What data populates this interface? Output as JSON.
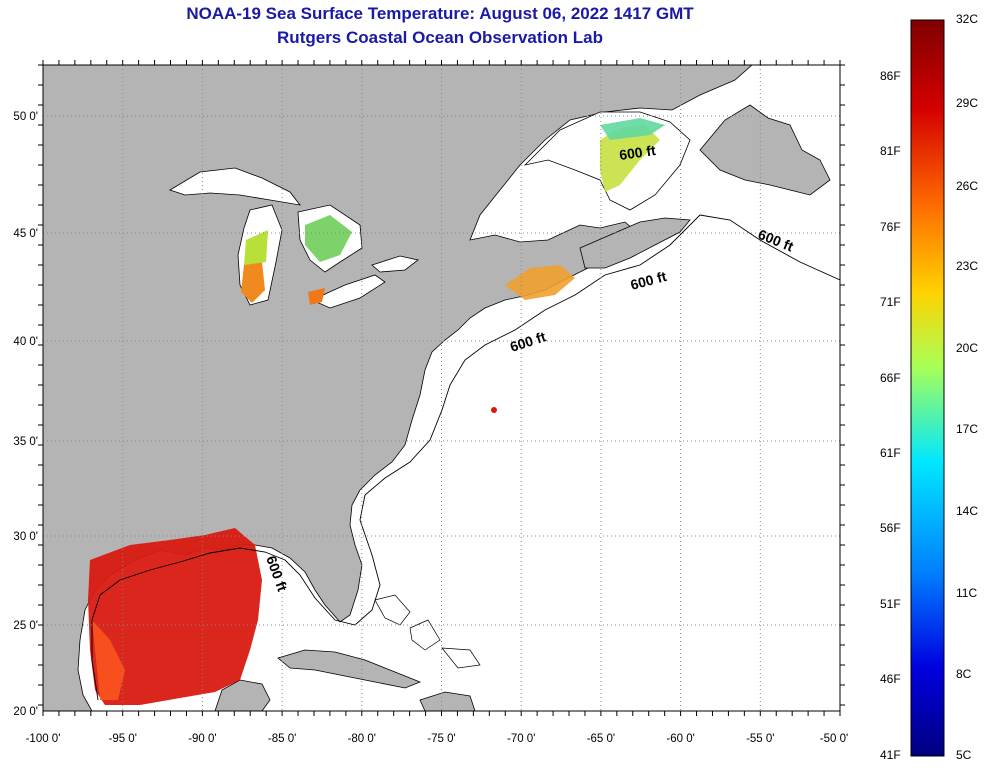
{
  "title": {
    "line1": "NOAA-19 Sea Surface Temperature:  August 06, 2022 1417 GMT",
    "line2": "Rutgers Coastal Ocean Observation Lab"
  },
  "colors": {
    "title": "#1a1aa6",
    "land": "#b4b4b4",
    "ocean": "#ffffff",
    "grid": "#888888"
  },
  "axes": {
    "x_labels": [
      "-100 0'",
      "-95 0'",
      "-90 0'",
      "-85 0'",
      "-80 0'",
      "-75 0'",
      "-70 0'",
      "-65 0'",
      "-60 0'",
      "-55 0'",
      "-50 0'"
    ],
    "y_labels": [
      "50 0'",
      "45 0'",
      "40 0'",
      "35 0'",
      "30 0'",
      "25 0'",
      "20 0'"
    ]
  },
  "contour_labels": [
    "600 ft",
    "600 ft",
    "600 ft",
    "600 ft",
    "600 ft"
  ],
  "colorbar": {
    "fahrenheit": [
      "86F",
      "81F",
      "76F",
      "71F",
      "66F",
      "61F",
      "56F",
      "51F",
      "46F",
      "41F"
    ],
    "celsius": [
      "32C",
      "29C",
      "26C",
      "23C",
      "20C",
      "17C",
      "14C",
      "11C",
      "8C",
      "5C"
    ]
  }
}
